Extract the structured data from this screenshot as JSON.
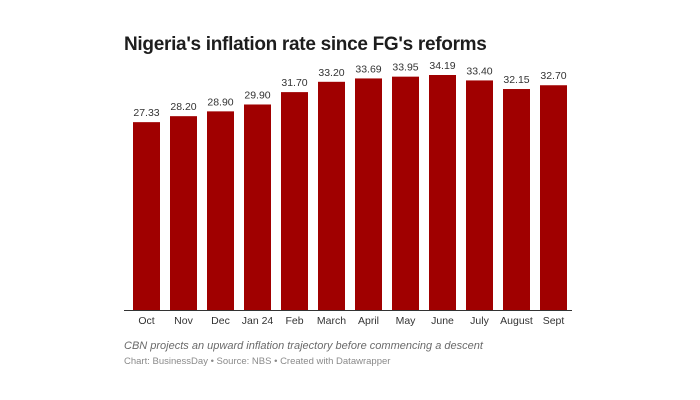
{
  "chart_data": {
    "type": "bar",
    "title": "Nigeria's inflation rate since FG's reforms",
    "categories": [
      "Oct",
      "Nov",
      "Dec",
      "Jan 24",
      "Feb",
      "March",
      "April",
      "May",
      "June",
      "July",
      "August",
      "Sept"
    ],
    "values": [
      27.33,
      28.2,
      28.9,
      29.9,
      31.7,
      33.2,
      33.69,
      33.95,
      34.19,
      33.4,
      32.15,
      32.7
    ],
    "value_labels": [
      "27.33",
      "28.20",
      "28.90",
      "29.90",
      "31.70",
      "33.20",
      "33.69",
      "33.95",
      "34.19",
      "33.40",
      "32.15",
      "32.70"
    ],
    "xlabel": "",
    "ylabel": "",
    "ylim": [
      0,
      34.19
    ],
    "grid": false,
    "bar_color": "#a00000",
    "description": "CBN projects an upward inflation trajectory before commencing a descent",
    "credit": "Chart: BusinessDay • Source: NBS • Created with Datawrapper"
  }
}
